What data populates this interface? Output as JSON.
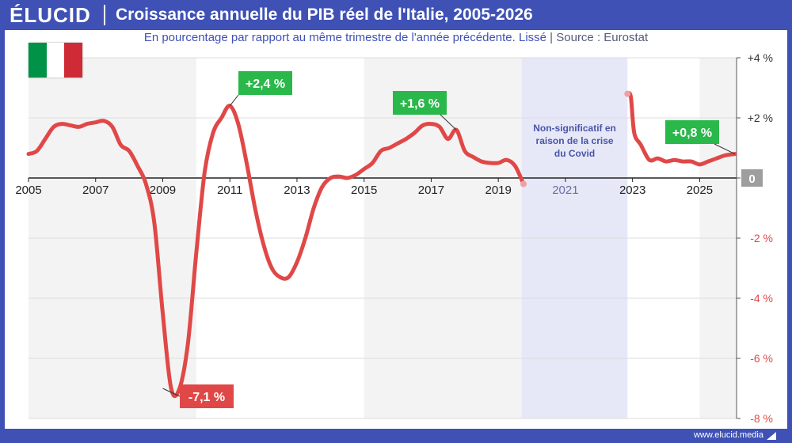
{
  "header": {
    "logo": "ÉLUCID",
    "title": "Croissance annuelle du PIB réel de l'Italie, 2005-2026",
    "subtitle": "En pourcentage par rapport au même trimestre de l'année précédente. Lissé",
    "separator": "|",
    "source": "Source : Eurostat"
  },
  "flag": {
    "country": "Italie",
    "colors": [
      "#009246",
      "#ffffff",
      "#ce2b37"
    ]
  },
  "footer": {
    "url": "www.elucid.media"
  },
  "colors": {
    "brand": "#3f51b5",
    "line": "#e04848",
    "positive_label": "#2ab84a",
    "negative_label": "#e04848",
    "zero_label": "#9e9e9e",
    "covid_band": "#e6e8f8",
    "covid_text": "#4a55a8",
    "shade": "#f3f3f3",
    "pos_tick": "#333333",
    "neg_tick": "#e04848"
  },
  "chart_data": {
    "type": "line",
    "title": "Croissance annuelle du PIB réel de l'Italie, 2005-2026",
    "xlabel": "",
    "ylabel": "",
    "xlim": [
      2005,
      2026.1
    ],
    "ylim": [
      -8,
      4
    ],
    "x_ticks": [
      "2005",
      "2007",
      "2009",
      "2011",
      "2013",
      "2015",
      "2017",
      "2019",
      "2021",
      "2023",
      "2025"
    ],
    "x_tick_values": [
      2005,
      2007,
      2009,
      2011,
      2013,
      2015,
      2017,
      2019,
      2021,
      2023,
      2025
    ],
    "y_ticks": [
      {
        "value": 4,
        "label": "+4 %"
      },
      {
        "value": 2,
        "label": "+2 %"
      },
      {
        "value": 0,
        "label": "0"
      },
      {
        "value": -2,
        "label": "-2 %"
      },
      {
        "value": -4,
        "label": "-4 %"
      },
      {
        "value": -6,
        "label": "-6 %"
      },
      {
        "value": -8,
        "label": "-8 %"
      }
    ],
    "grid": true,
    "shaded_periods": [
      [
        2005,
        2010
      ],
      [
        2015,
        2020
      ],
      [
        2025,
        2026.1
      ]
    ],
    "covid_band": {
      "from": 2019.7,
      "to": 2022.85,
      "label": [
        "Non-significatif en",
        "raison de la crise",
        "du Covid"
      ]
    },
    "series": [
      {
        "segments": [
          [
            [
              2005,
              0.8
            ],
            [
              2005.25,
              0.9
            ],
            [
              2005.5,
              1.3
            ],
            [
              2005.75,
              1.7
            ],
            [
              2006,
              1.8
            ],
            [
              2006.25,
              1.75
            ],
            [
              2006.5,
              1.7
            ],
            [
              2006.75,
              1.8
            ],
            [
              2007,
              1.85
            ],
            [
              2007.25,
              1.9
            ],
            [
              2007.5,
              1.7
            ],
            [
              2007.75,
              1.1
            ],
            [
              2008,
              0.9
            ],
            [
              2008.25,
              0.4
            ],
            [
              2008.5,
              -0.2
            ],
            [
              2008.75,
              -1.5
            ],
            [
              2009,
              -4.5
            ],
            [
              2009.25,
              -7.0
            ],
            [
              2009.5,
              -7.0
            ],
            [
              2009.75,
              -5.5
            ],
            [
              2010,
              -2.5
            ],
            [
              2010.25,
              0.2
            ],
            [
              2010.5,
              1.5
            ],
            [
              2010.75,
              2.0
            ],
            [
              2011,
              2.4
            ],
            [
              2011.25,
              1.8
            ],
            [
              2011.5,
              0.5
            ],
            [
              2011.75,
              -1.0
            ],
            [
              2012,
              -2.2
            ],
            [
              2012.25,
              -3.0
            ],
            [
              2012.5,
              -3.3
            ],
            [
              2012.75,
              -3.3
            ],
            [
              2013,
              -2.8
            ],
            [
              2013.25,
              -2.0
            ],
            [
              2013.5,
              -1.0
            ],
            [
              2013.75,
              -0.3
            ],
            [
              2014,
              0.0
            ],
            [
              2014.25,
              0.05
            ],
            [
              2014.5,
              0.0
            ],
            [
              2014.75,
              0.1
            ],
            [
              2015,
              0.3
            ],
            [
              2015.25,
              0.5
            ],
            [
              2015.5,
              0.9
            ],
            [
              2015.75,
              1.0
            ],
            [
              2016,
              1.15
            ],
            [
              2016.25,
              1.3
            ],
            [
              2016.5,
              1.5
            ],
            [
              2016.75,
              1.75
            ],
            [
              2017,
              1.8
            ],
            [
              2017.25,
              1.7
            ],
            [
              2017.5,
              1.3
            ],
            [
              2017.75,
              1.6
            ],
            [
              2018,
              0.9
            ],
            [
              2018.25,
              0.7
            ],
            [
              2018.5,
              0.55
            ],
            [
              2018.75,
              0.5
            ],
            [
              2019,
              0.5
            ],
            [
              2019.25,
              0.6
            ],
            [
              2019.5,
              0.4
            ],
            [
              2019.75,
              -0.2
            ]
          ],
          [
            [
              2022.85,
              2.8
            ],
            [
              2022.95,
              2.7
            ],
            [
              2023.05,
              1.5
            ],
            [
              2023.25,
              1.1
            ],
            [
              2023.5,
              0.6
            ],
            [
              2023.75,
              0.65
            ],
            [
              2024,
              0.55
            ],
            [
              2024.25,
              0.6
            ],
            [
              2024.5,
              0.55
            ],
            [
              2024.75,
              0.55
            ],
            [
              2025,
              0.45
            ],
            [
              2025.25,
              0.55
            ],
            [
              2025.5,
              0.65
            ],
            [
              2025.75,
              0.75
            ],
            [
              2026.05,
              0.8
            ]
          ]
        ]
      }
    ],
    "annotations": [
      {
        "text": "+2,4 %",
        "x": 2011,
        "y": 2.4,
        "kind": "positive"
      },
      {
        "text": "-7,1 %",
        "x": 2009.0,
        "y": -7.0,
        "kind": "negative"
      },
      {
        "text": "+1,6 %",
        "x": 2017.75,
        "y": 1.6,
        "kind": "positive"
      },
      {
        "text": "+0,8 %",
        "x": 2026.05,
        "y": 0.8,
        "kind": "positive"
      }
    ]
  }
}
